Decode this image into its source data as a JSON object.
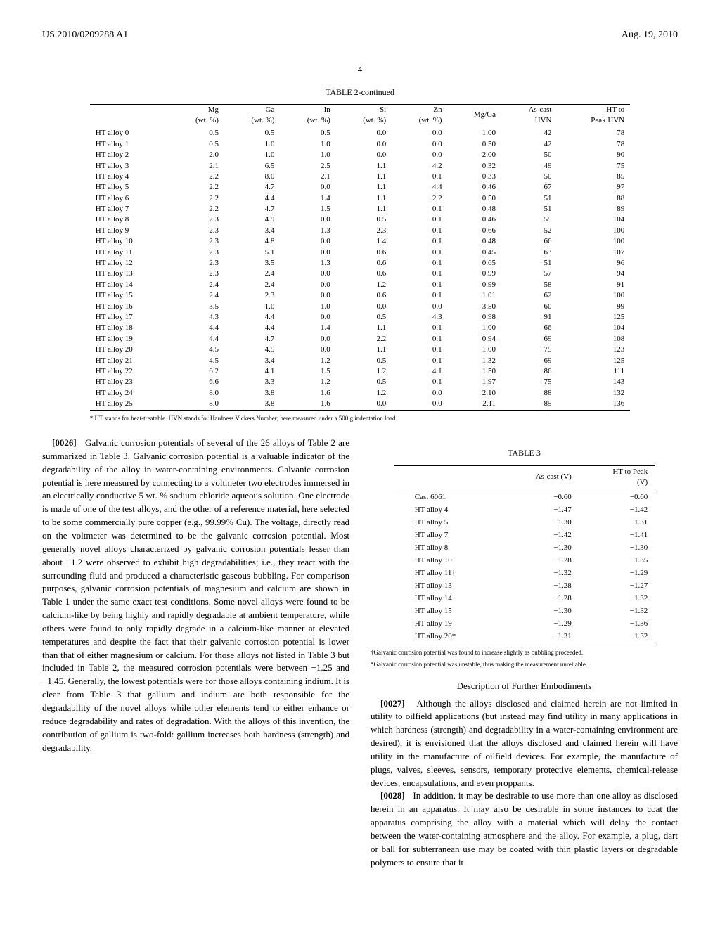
{
  "header": {
    "left": "US 2010/0209288 A1",
    "right": "Aug. 19, 2010"
  },
  "page_number": "4",
  "table2": {
    "title": "TABLE 2-continued",
    "headers": [
      "",
      "Mg\n(wt. %)",
      "Ga\n(wt. %)",
      "In\n(wt. %)",
      "Si\n(wt. %)",
      "Zn\n(wt. %)",
      "Mg/Ga",
      "As-cast\nHVN",
      "HT to\nPeak HVN"
    ],
    "rows": [
      [
        "HT alloy 0",
        "0.5",
        "0.5",
        "0.5",
        "0.0",
        "0.0",
        "1.00",
        "42",
        "78"
      ],
      [
        "HT alloy 1",
        "0.5",
        "1.0",
        "1.0",
        "0.0",
        "0.0",
        "0.50",
        "42",
        "78"
      ],
      [
        "HT alloy 2",
        "2.0",
        "1.0",
        "1.0",
        "0.0",
        "0.0",
        "2.00",
        "50",
        "90"
      ],
      [
        "HT alloy 3",
        "2.1",
        "6.5",
        "2.5",
        "1.1",
        "4.2",
        "0.32",
        "49",
        "75"
      ],
      [
        "HT alloy 4",
        "2.2",
        "8.0",
        "2.1",
        "1.1",
        "0.1",
        "0.33",
        "50",
        "85"
      ],
      [
        "HT alloy 5",
        "2.2",
        "4.7",
        "0.0",
        "1.1",
        "4.4",
        "0.46",
        "67",
        "97"
      ],
      [
        "HT alloy 6",
        "2.2",
        "4.4",
        "1.4",
        "1.1",
        "2.2",
        "0.50",
        "51",
        "88"
      ],
      [
        "HT alloy 7",
        "2.2",
        "4.7",
        "1.5",
        "1.1",
        "0.1",
        "0.48",
        "51",
        "89"
      ],
      [
        "HT alloy 8",
        "2.3",
        "4.9",
        "0.0",
        "0.5",
        "0.1",
        "0.46",
        "55",
        "104"
      ],
      [
        "HT alloy 9",
        "2.3",
        "3.4",
        "1.3",
        "2.3",
        "0.1",
        "0.66",
        "52",
        "100"
      ],
      [
        "HT alloy 10",
        "2.3",
        "4.8",
        "0.0",
        "1.4",
        "0.1",
        "0.48",
        "66",
        "100"
      ],
      [
        "HT alloy 11",
        "2.3",
        "5.1",
        "0.0",
        "0.6",
        "0.1",
        "0.45",
        "63",
        "107"
      ],
      [
        "HT alloy 12",
        "2.3",
        "3.5",
        "1.3",
        "0.6",
        "0.1",
        "0.65",
        "51",
        "96"
      ],
      [
        "HT alloy 13",
        "2.3",
        "2.4",
        "0.0",
        "0.6",
        "0.1",
        "0.99",
        "57",
        "94"
      ],
      [
        "HT alloy 14",
        "2.4",
        "2.4",
        "0.0",
        "1.2",
        "0.1",
        "0.99",
        "58",
        "91"
      ],
      [
        "HT alloy 15",
        "2.4",
        "2.3",
        "0.0",
        "0.6",
        "0.1",
        "1.01",
        "62",
        "100"
      ],
      [
        "HT alloy 16",
        "3.5",
        "1.0",
        "1.0",
        "0.0",
        "0.0",
        "3.50",
        "60",
        "99"
      ],
      [
        "HT alloy 17",
        "4.3",
        "4.4",
        "0.0",
        "0.5",
        "4.3",
        "0.98",
        "91",
        "125"
      ],
      [
        "HT alloy 18",
        "4.4",
        "4.4",
        "1.4",
        "1.1",
        "0.1",
        "1.00",
        "66",
        "104"
      ],
      [
        "HT alloy 19",
        "4.4",
        "4.7",
        "0.0",
        "2.2",
        "0.1",
        "0.94",
        "69",
        "108"
      ],
      [
        "HT alloy 20",
        "4.5",
        "4.5",
        "0.0",
        "1.1",
        "0.1",
        "1.00",
        "75",
        "123"
      ],
      [
        "HT alloy 21",
        "4.5",
        "3.4",
        "1.2",
        "0.5",
        "0.1",
        "1.32",
        "69",
        "125"
      ],
      [
        "HT alloy 22",
        "6.2",
        "4.1",
        "1.5",
        "1.2",
        "4.1",
        "1.50",
        "86",
        "111"
      ],
      [
        "HT alloy 23",
        "6.6",
        "3.3",
        "1.2",
        "0.5",
        "0.1",
        "1.97",
        "75",
        "143"
      ],
      [
        "HT alloy 24",
        "8.0",
        "3.8",
        "1.6",
        "1.2",
        "0.0",
        "2.10",
        "88",
        "132"
      ],
      [
        "HT alloy 25",
        "8.0",
        "3.8",
        "1.6",
        "0.0",
        "0.0",
        "2.11",
        "85",
        "136"
      ]
    ],
    "footnote": "* HT stands for heat-treatable. HVN stands for Hardness Vickers Number; here measured under a 500 g indentation load."
  },
  "para26": {
    "num": "[0026]",
    "text": "Galvanic corrosion potentials of several of the 26 alloys of Table 2 are summarized in Table 3. Galvanic corrosion potential is a valuable indicator of the degradability of the alloy in water-containing environments. Galvanic corrosion potential is here measured by connecting to a voltmeter two electrodes immersed in an electrically conductive 5 wt. % sodium chloride aqueous solution. One electrode is made of one of the test alloys, and the other of a reference material, here selected to be some commercially pure copper (e.g., 99.99% Cu). The voltage, directly read on the voltmeter was determined to be the galvanic corrosion potential. Most generally novel alloys characterized by galvanic corrosion potentials lesser than about −1.2 were observed to exhibit high degradabilities; i.e., they react with the surrounding fluid and produced a characteristic gaseous bubbling. For comparison purposes, galvanic corrosion potentials of magnesium and calcium are shown in Table 1 under the same exact test conditions. Some novel alloys were found to be calcium-like by being highly and rapidly degradable at ambient temperature, while others were found to only rapidly degrade in a calcium-like manner at elevated temperatures and despite the fact that their galvanic corrosion potential is lower than that of either magnesium or calcium. For those alloys not listed in Table 3 but included in Table 2, the measured corrosion potentials were between −1.25 and −1.45. Generally, the lowest potentials were for those alloys containing indium. It is clear from Table 3 that gallium and indium are both responsible for the degradability of the novel alloys while other elements tend to either enhance or reduce degradability and rates of degradation. With the alloys of this invention, the contribution of gallium is two-fold: gallium increases both hardness (strength) and degradability."
  },
  "table3": {
    "title": "TABLE 3",
    "headers": [
      "",
      "As-cast (V)",
      "HT to Peak\n(V)"
    ],
    "rows": [
      [
        "Cast 6061",
        "−0.60",
        "−0.60"
      ],
      [
        "HT alloy 4",
        "−1.47",
        "−1.42"
      ],
      [
        "HT alloy 5",
        "−1.30",
        "−1.31"
      ],
      [
        "HT alloy 7",
        "−1.42",
        "−1.41"
      ],
      [
        "HT alloy 8",
        "−1.30",
        "−1.30"
      ],
      [
        "HT alloy 10",
        "−1.28",
        "−1.35"
      ],
      [
        "HT alloy 11†",
        "−1.32",
        "−1.29"
      ],
      [
        "HT alloy 13",
        "−1.28",
        "−1.27"
      ],
      [
        "HT alloy 14",
        "−1.28",
        "−1.32"
      ],
      [
        "HT alloy 15",
        "−1.30",
        "−1.32"
      ],
      [
        "HT alloy 19",
        "−1.29",
        "−1.36"
      ],
      [
        "HT alloy 20*",
        "−1.31",
        "−1.32"
      ]
    ],
    "footnote1": "†Galvanic corrosion potential was found to increase slightly as bubbling proceeded.",
    "footnote2": "*Galvanic corrosion potential was unstable, thus making the measurement unreliable."
  },
  "section_title": "Description of Further Embodiments",
  "para27": {
    "num": "[0027]",
    "text": "Although the alloys disclosed and claimed herein are not limited in utility to oilfield applications (but instead may find utility in many applications in which hardness (strength) and degradability in a water-containing environment are desired), it is envisioned that the alloys disclosed and claimed herein will have utility in the manufacture of oilfield devices. For example, the manufacture of plugs, valves, sleeves, sensors, temporary protective elements, chemical-release devices, encapsulations, and even proppants."
  },
  "para28": {
    "num": "[0028]",
    "text": "In addition, it may be desirable to use more than one alloy as disclosed herein in an apparatus. It may also be desirable in some instances to coat the apparatus comprising the alloy with a material which will delay the contact between the water-containing atmosphere and the alloy. For example, a plug, dart or ball for subterranean use may be coated with thin plastic layers or degradable polymers to ensure that it"
  }
}
